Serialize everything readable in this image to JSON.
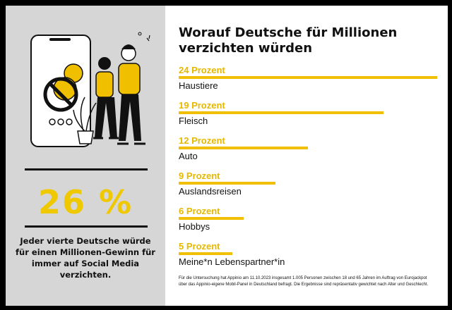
{
  "highlight": {
    "value": "26 %",
    "caption": "Jeder vierte Deutsche würde für einen Millionen-Gewinn für immer auf Social Media verzichten."
  },
  "chart_data": {
    "type": "bar",
    "orientation": "horizontal",
    "title": "Worauf Deutsche für Millionen verzichten würden",
    "unit": "Prozent",
    "xlim": [
      0,
      24
    ],
    "categories": [
      "Haustiere",
      "Fleisch",
      "Auto",
      "Auslandsreisen",
      "Hobbys",
      "Meine*n Lebenspartner*in"
    ],
    "values": [
      24,
      19,
      12,
      9,
      6,
      5
    ],
    "value_labels": [
      "24 Prozent",
      "19 Prozent",
      "12 Prozent",
      "9 Prozent",
      "6 Prozent",
      "5 Prozent"
    ],
    "footnote": "Für die Untersuchung hat Appinio am 11.10.2023 insgesamt 1.005 Personen zwischen 18 und 65 Jahren im Auftrag von Eurojackpot über das Appinio-eigene Mobil-Panel in Deutschland befragt. Die Ergebnisse sind repräsentativ gewichtet nach Alter und Geschlecht."
  },
  "colors": {
    "accent": "#f0c000",
    "accent_text": "#e6b800",
    "left_panel": "#d6d6d6",
    "frame": "#000000"
  }
}
